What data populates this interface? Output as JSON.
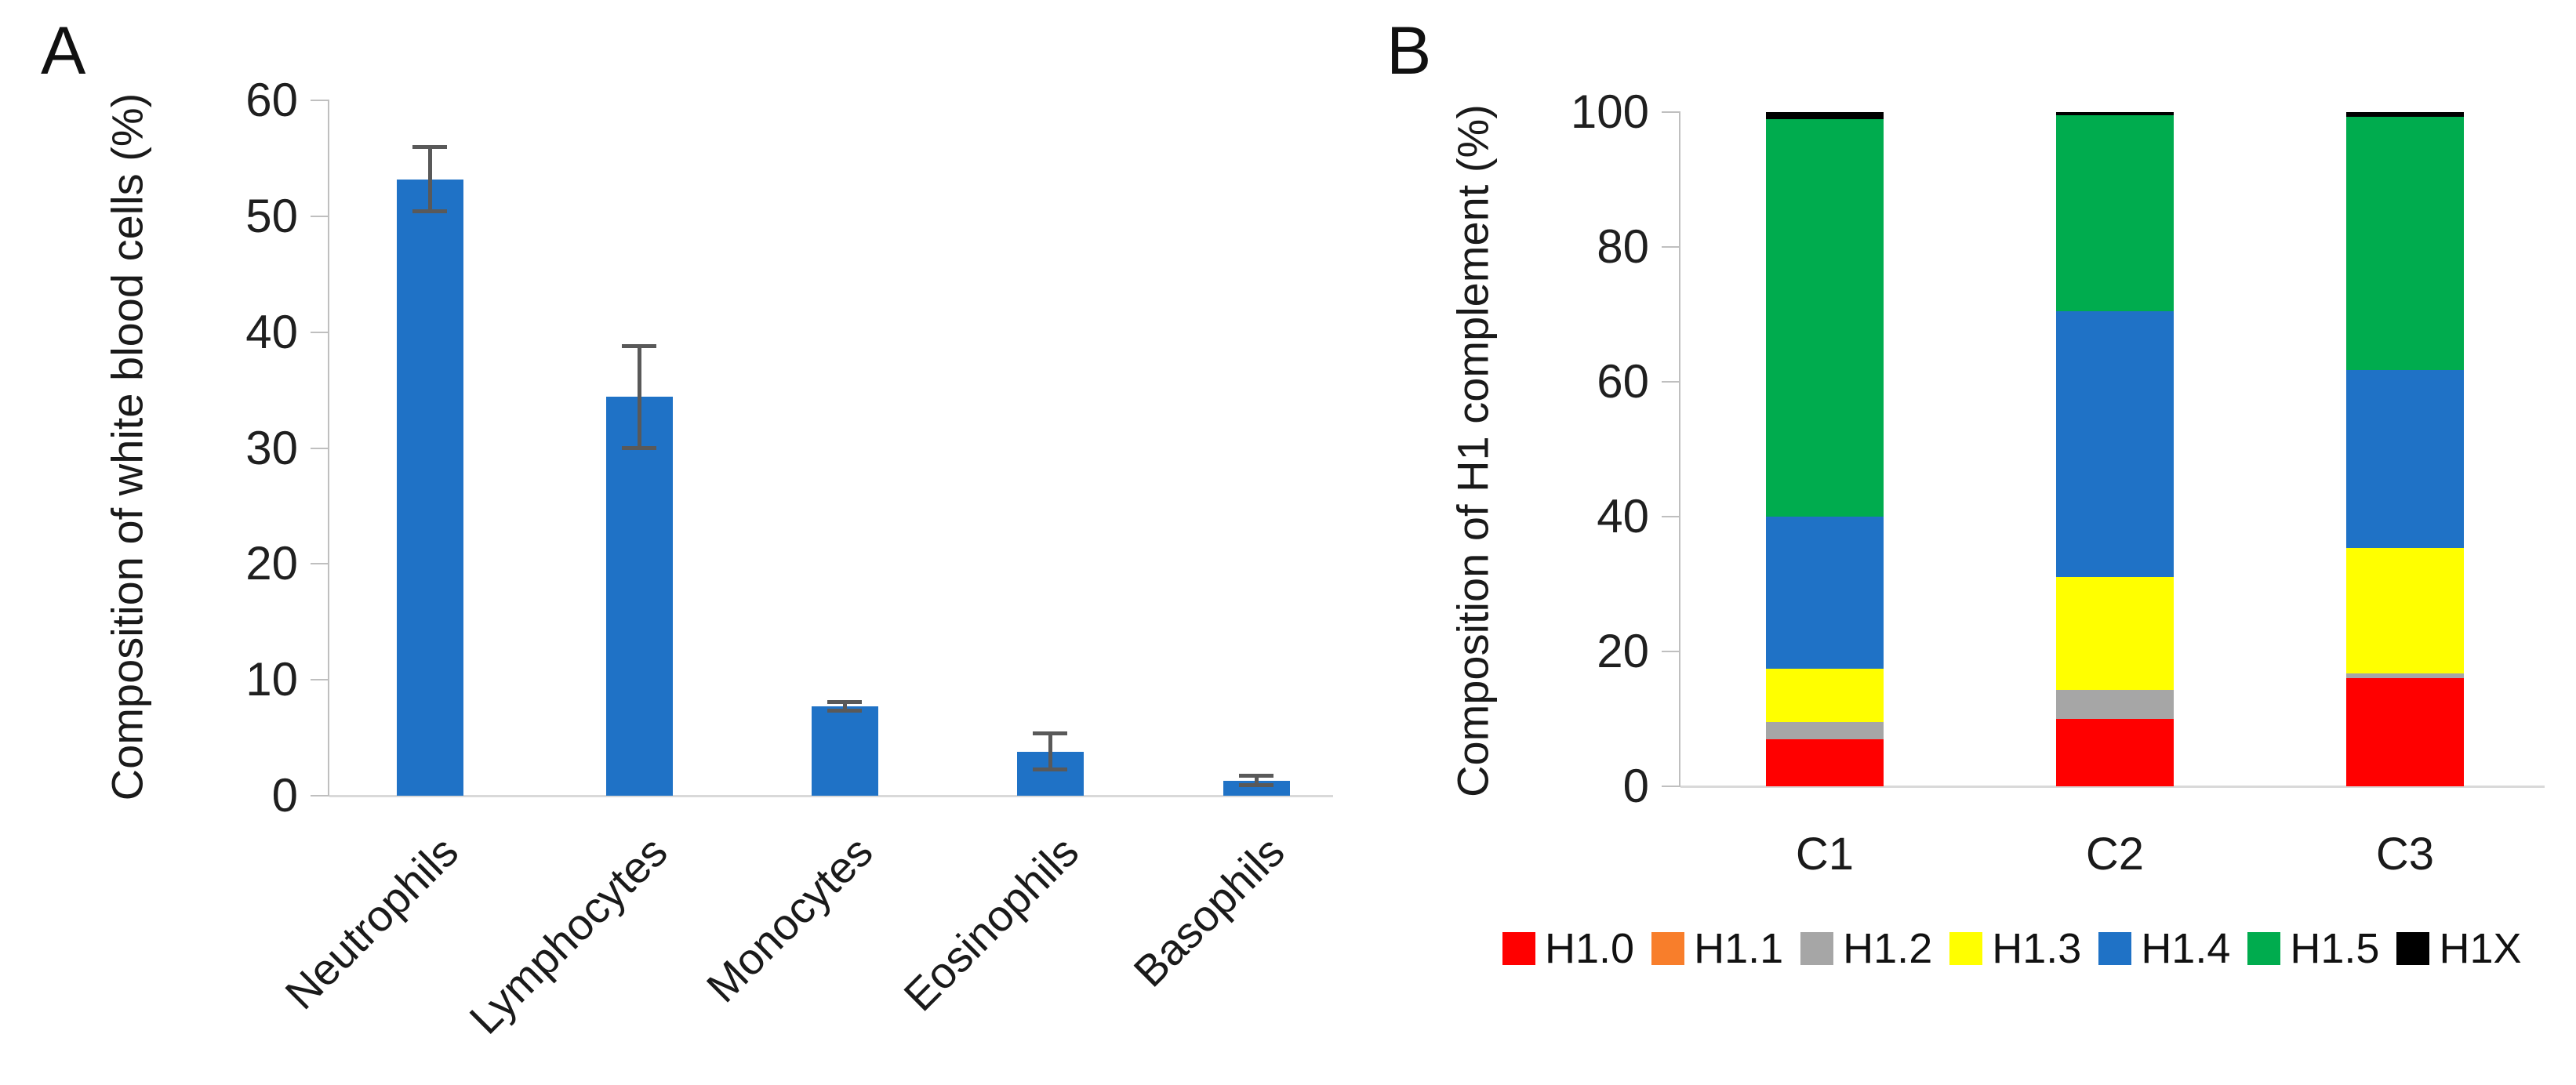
{
  "panels": {
    "a_label": "A",
    "b_label": "B"
  },
  "chart_data": [
    {
      "id": "panel_a",
      "type": "bar",
      "title": "",
      "xlabel": "",
      "ylabel": "Composition of white blood cells (%)",
      "categories": [
        "Neutrophils",
        "Lymphocytes",
        "Monocytes",
        "Eosinophils",
        "Basophils"
      ],
      "values": [
        53.2,
        34.4,
        7.7,
        3.8,
        1.3
      ],
      "error_bars": [
        2.8,
        4.4,
        0.4,
        1.6,
        0.45
      ],
      "ylim": [
        0,
        60
      ],
      "yticks": [
        "0",
        "10",
        "20",
        "30",
        "40",
        "50",
        "60"
      ],
      "grid": false,
      "bar_color": "#1F72C6",
      "error_color": "#595959"
    },
    {
      "id": "panel_b",
      "type": "stacked-bar",
      "title": "",
      "xlabel": "",
      "ylabel": "Composition of H1 complement (%)",
      "categories": [
        "C1",
        "C2",
        "C3"
      ],
      "series": [
        {
          "name": "H1.0",
          "color": "#FF0000",
          "values": [
            7.0,
            10.0,
            16.0
          ]
        },
        {
          "name": "H1.1",
          "color": "#F87E2B",
          "values": [
            0.0,
            0.0,
            0.0
          ]
        },
        {
          "name": "H1.2",
          "color": "#A6A6A6",
          "values": [
            2.5,
            4.3,
            0.8
          ]
        },
        {
          "name": "H1.3",
          "color": "#FFFF00",
          "values": [
            8.0,
            16.7,
            18.5
          ]
        },
        {
          "name": "H1.4",
          "color": "#1F72C6",
          "values": [
            22.5,
            39.5,
            26.5
          ]
        },
        {
          "name": "H1.5",
          "color": "#00AC4E",
          "values": [
            59.0,
            29.0,
            37.5
          ]
        },
        {
          "name": "H1X",
          "color": "#000000",
          "values": [
            1.0,
            0.5,
            0.7
          ]
        }
      ],
      "ylim": [
        0,
        100
      ],
      "yticks": [
        "0",
        "20",
        "40",
        "60",
        "80",
        "100"
      ],
      "grid": false,
      "legend_position": "bottom"
    }
  ]
}
